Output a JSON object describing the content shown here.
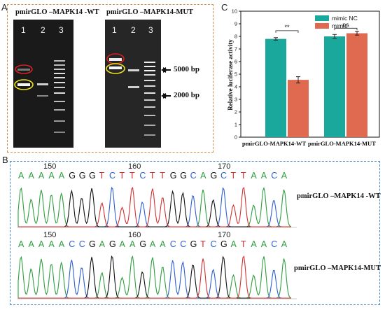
{
  "panel_a": {
    "letter": "A",
    "wt_title": "pmirGLO –MAPK14 -WT",
    "mut_title": "pmirGLO –MAPK14-MUT",
    "lanes": [
      "1",
      "2",
      "3"
    ],
    "markers": [
      "5000 bp",
      "2000 bp"
    ]
  },
  "panel_b": {
    "letter": "B",
    "wt_label": "pmirGLO –MAPK14 -WT",
    "mut_label": "pmirGLO –MAPK14-MUT",
    "wt_positions": [
      "150",
      "160",
      "170"
    ],
    "mut_positions": [
      "150",
      "160",
      "170"
    ],
    "wt_sequence": "AAAAAGGGTCTTCTTGGCAGCTTAACA",
    "mut_sequence": "AAAAACCGAGAAGAACCGTCGATAACA",
    "base_colors": {
      "A": "#2e9e3e",
      "C": "#2c5fd0",
      "G": "#111111",
      "T": "#d23030"
    }
  },
  "panel_c": {
    "letter": "C",
    "significance": [
      "**",
      "ns"
    ]
  },
  "chart_data": {
    "type": "bar",
    "categories": [
      "pmirGLO-MAPK14-WT",
      "pmirGLO-MAPK14-MUT"
    ],
    "series": [
      {
        "name": "mimic NC",
        "values": [
          7.8,
          8.0
        ],
        "errors": [
          0.1,
          0.15
        ],
        "color": "#1aa89c"
      },
      {
        "name": "mimic",
        "values": [
          4.55,
          8.25
        ],
        "errors": [
          0.25,
          0.15
        ],
        "color": "#e06a50"
      }
    ],
    "ylabel": "Relative luciferase activity",
    "ylim": [
      0,
      10
    ],
    "yticks": [
      0,
      1,
      2,
      3,
      4,
      5,
      6,
      7,
      8,
      9,
      10
    ],
    "legend": "top-right",
    "grid": false
  }
}
